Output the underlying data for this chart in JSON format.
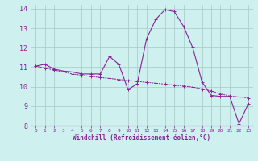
{
  "xlabel": "Windchill (Refroidissement éolien,°C)",
  "xlim": [
    -0.5,
    23.5
  ],
  "ylim": [
    8,
    14.2
  ],
  "yticks": [
    8,
    9,
    10,
    11,
    12,
    13,
    14
  ],
  "xticks": [
    0,
    1,
    2,
    3,
    4,
    5,
    6,
    7,
    8,
    9,
    10,
    11,
    12,
    13,
    14,
    15,
    16,
    17,
    18,
    19,
    20,
    21,
    22,
    23
  ],
  "bg_color": "#cef0ee",
  "grid_color": "#aacfcc",
  "line_color": "#882299",
  "curve1_x": [
    0,
    1,
    2,
    3,
    4,
    5,
    6,
    7,
    8,
    9,
    10,
    11,
    12,
    13,
    14,
    15,
    16,
    17,
    18,
    19,
    20,
    21,
    22,
    23
  ],
  "curve1_y": [
    11.05,
    11.15,
    10.9,
    10.8,
    10.75,
    10.65,
    10.65,
    10.65,
    11.55,
    11.15,
    9.85,
    10.15,
    12.45,
    13.45,
    13.95,
    13.85,
    13.1,
    12.0,
    10.25,
    9.55,
    9.5,
    9.5,
    8.1,
    9.1
  ],
  "curve2_x": [
    0,
    1,
    2,
    3,
    4,
    5,
    6,
    7,
    8,
    9,
    10,
    11,
    12,
    13,
    14,
    15,
    16,
    17,
    18,
    19,
    20,
    21,
    22,
    23
  ],
  "curve2_y": [
    11.05,
    10.95,
    10.85,
    10.75,
    10.65,
    10.58,
    10.52,
    10.47,
    10.42,
    10.37,
    10.32,
    10.27,
    10.22,
    10.18,
    10.13,
    10.08,
    10.03,
    9.98,
    9.88,
    9.78,
    9.63,
    9.52,
    9.47,
    9.42
  ]
}
